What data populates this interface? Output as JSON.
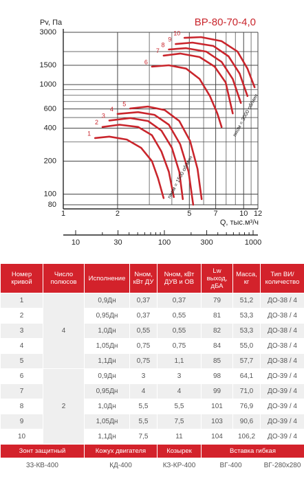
{
  "chart_data": {
    "type": "line",
    "title": "ВР-80-70-4,0",
    "y_label": "Pv, Па",
    "x_label": "Q, тыс.м³/ч",
    "log_x": true,
    "log_y": true,
    "grid": true,
    "xlim": [
      1,
      12
    ],
    "xticks": [
      1,
      2,
      5,
      7,
      10,
      12
    ],
    "xminorticks": [
      3,
      4,
      6,
      8,
      9,
      11
    ],
    "ylim": [
      80,
      3000
    ],
    "yticks": [
      3000,
      1500,
      1000,
      600,
      400,
      200,
      100,
      80
    ],
    "yminorticks": [
      2000,
      900,
      800,
      700,
      500,
      300
    ],
    "x2lim": [
      7.25,
      1133
    ],
    "x2ticks": [
      10,
      30,
      100,
      300,
      1000
    ],
    "x2minorticks": [
      20,
      40,
      50,
      60,
      70,
      80,
      90,
      200,
      400,
      500,
      600,
      700,
      800,
      900
    ],
    "series": [
      {
        "name": "1",
        "color": "#c9252c",
        "x": [
          1.5,
          1.8,
          2.25,
          2.7,
          3.1,
          3.35,
          3.6
        ],
        "values": [
          325,
          335,
          315,
          265,
          200,
          140,
          92
        ]
      },
      {
        "name": "2",
        "color": "#c9252c",
        "x": [
          1.65,
          2.05,
          2.6,
          3.1,
          3.5,
          3.85,
          4.1
        ],
        "values": [
          410,
          430,
          410,
          345,
          245,
          160,
          94
        ]
      },
      {
        "name": "3",
        "color": "#c9252c",
        "x": [
          1.8,
          2.35,
          2.95,
          3.5,
          4.0,
          4.4,
          4.6
        ],
        "values": [
          470,
          495,
          465,
          380,
          265,
          160,
          90
        ]
      },
      {
        "name": "4",
        "color": "#c9252c",
        "x": [
          2.0,
          2.6,
          3.2,
          3.85,
          4.45,
          4.95,
          5.25
        ],
        "values": [
          540,
          560,
          530,
          430,
          285,
          160,
          80
        ]
      },
      {
        "name": "5",
        "color": "#c9252c",
        "x": [
          2.35,
          2.95,
          3.65,
          4.4,
          5.05,
          5.55,
          5.85
        ],
        "values": [
          605,
          630,
          585,
          465,
          305,
          170,
          90
        ]
      },
      {
        "name": "6",
        "color": "#c9252c",
        "x": [
          3.1,
          3.85,
          4.8,
          5.7,
          6.5,
          7.15,
          7.55
        ],
        "values": [
          1460,
          1500,
          1400,
          1125,
          785,
          545,
          410
        ]
      },
      {
        "name": "7",
        "color": "#c9252c",
        "x": [
          3.6,
          4.45,
          5.7,
          6.9,
          7.95,
          8.7
        ],
        "values": [
          1840,
          1920,
          1785,
          1460,
          1045,
          545
        ]
      },
      {
        "name": "8",
        "color": "#c9252c",
        "x": [
          3.85,
          4.8,
          6.2,
          7.55,
          8.7,
          9.65
        ],
        "values": [
          2090,
          2150,
          2000,
          1610,
          1125,
          680
        ]
      },
      {
        "name": "9",
        "color": "#c9252c",
        "x": [
          4.2,
          5.2,
          6.8,
          8.25,
          9.5,
          10.5
        ],
        "values": [
          2345,
          2415,
          2250,
          1810,
          1260,
          785
        ]
      },
      {
        "name": "10",
        "color": "#c9252c",
        "x": [
          4.7,
          5.8,
          7.55,
          9.25,
          10.5,
          11.5
        ],
        "values": [
          2670,
          2710,
          2490,
          2000,
          1400,
          945
        ]
      }
    ],
    "annotations": [
      "nном = 1500 об/мин",
      "nном = 3000 об/мин"
    ]
  },
  "table": {
    "header": [
      "Номер кривой",
      "Число полюсов",
      "Исполнение",
      "Nном, кВт ДУ",
      "Nном, кВт ДУВ и ОВ",
      "Lw выход, дБА",
      "Масса, кг",
      "Тип ВИ/ количество"
    ],
    "poles": [
      "4",
      "2"
    ],
    "rows": [
      [
        "1",
        "0,9Дн",
        "0,37",
        "0,37",
        "79",
        "51,2",
        "ДО-38 / 4"
      ],
      [
        "2",
        "0,95Дн",
        "0,37",
        "0,55",
        "81",
        "53,3",
        "ДО-38 / 4"
      ],
      [
        "3",
        "1,0Дн",
        "0,55",
        "0,55",
        "82",
        "53,3",
        "ДО-38 / 4"
      ],
      [
        "4",
        "1,05Дн",
        "0,75",
        "0,75",
        "84",
        "55,0",
        "ДО-38 / 4"
      ],
      [
        "5",
        "1,1Дн",
        "0,75",
        "1,1",
        "85",
        "57,7",
        "ДО-38 / 4"
      ],
      [
        "6",
        "0,9Дн",
        "3",
        "3",
        "98",
        "64,1",
        "ДО-39 / 4"
      ],
      [
        "7",
        "0,95Дн",
        "4",
        "4",
        "99",
        "71,0",
        "ДО-39 / 4"
      ],
      [
        "8",
        "1,0Дн",
        "5,5",
        "5,5",
        "101",
        "76,9",
        "ДО-39 / 4"
      ],
      [
        "9",
        "1,05Дн",
        "5,5",
        "7,5",
        "103",
        "90,6",
        "ДО-39 / 4"
      ],
      [
        "10",
        "1,1Дн",
        "7,5",
        "11",
        "104",
        "106,2",
        "ДО-39 / 4"
      ]
    ],
    "accessory_headers": [
      "Зонт защитный",
      "Кожух двигателя",
      "Козырек",
      "Вставка гибкая"
    ],
    "accessory_items": [
      "33-КВ-400",
      "КД-400",
      "КЗ-КР-400",
      "ВГ-400",
      "ВГ-280х280"
    ]
  }
}
